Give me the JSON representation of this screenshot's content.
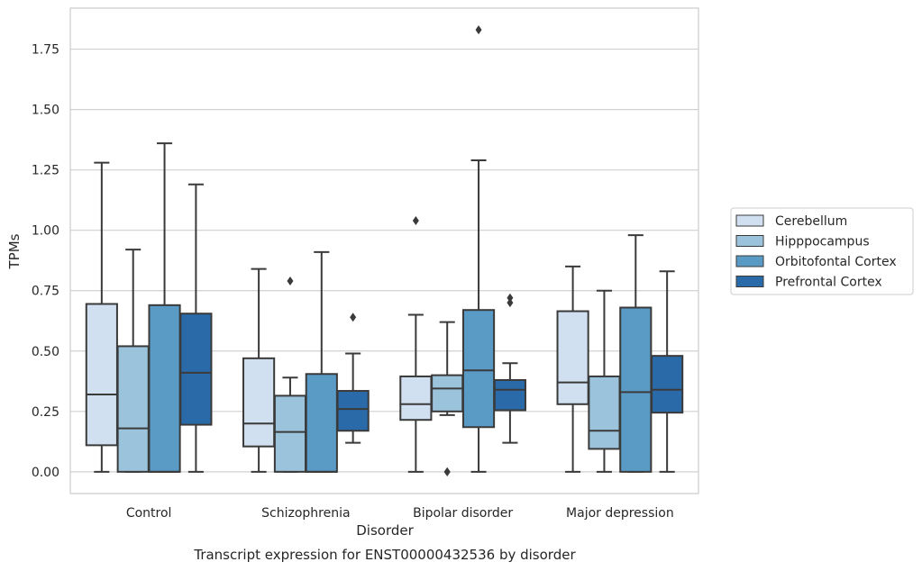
{
  "chart_data": {
    "type": "box",
    "caption": "Transcript expression for ENST00000432536 by disorder",
    "xlabel": "Disorder",
    "ylabel": "TPMs",
    "ylim": [
      -0.09,
      1.92
    ],
    "yticks": [
      "0.00",
      "0.25",
      "0.50",
      "0.75",
      "1.00",
      "1.25",
      "1.50",
      "1.75"
    ],
    "ytick_values": [
      0,
      0.25,
      0.5,
      0.75,
      1.0,
      1.25,
      1.5,
      1.75
    ],
    "grid": true,
    "legend_position": "right",
    "categories": [
      "Control",
      "Schizophrenia",
      "Bipolar disorder",
      "Major depression"
    ],
    "series": [
      {
        "name": "Cerebellum",
        "color": "#d1e0f0",
        "boxes": [
          {
            "whislo": 0.0,
            "q1": 0.11,
            "med": 0.32,
            "q3": 0.695,
            "whishi": 1.28,
            "fliers": []
          },
          {
            "whislo": 0.0,
            "q1": 0.105,
            "med": 0.2,
            "q3": 0.47,
            "whishi": 0.84,
            "fliers": []
          },
          {
            "whislo": 0.0,
            "q1": 0.215,
            "med": 0.28,
            "q3": 0.395,
            "whishi": 0.65,
            "fliers": [
              1.04
            ]
          },
          {
            "whislo": 0.0,
            "q1": 0.28,
            "med": 0.37,
            "q3": 0.665,
            "whishi": 0.85,
            "fliers": []
          }
        ]
      },
      {
        "name": "Hipppocampus",
        "color": "#9cc3dc",
        "boxes": [
          {
            "whislo": 0.0,
            "q1": 0.0,
            "med": 0.18,
            "q3": 0.52,
            "whishi": 0.92,
            "fliers": []
          },
          {
            "whislo": 0.0,
            "q1": 0.0,
            "med": 0.165,
            "q3": 0.315,
            "whishi": 0.39,
            "fliers": [
              0.79
            ]
          },
          {
            "whislo": 0.235,
            "q1": 0.25,
            "med": 0.345,
            "q3": 0.4,
            "whishi": 0.62,
            "fliers": [
              0.0,
              0.0
            ]
          },
          {
            "whislo": 0.0,
            "q1": 0.095,
            "med": 0.17,
            "q3": 0.395,
            "whishi": 0.75,
            "fliers": []
          }
        ]
      },
      {
        "name": "Orbitofontal Cortex",
        "color": "#5a9bc6",
        "boxes": [
          {
            "whislo": 0.0,
            "q1": 0.0,
            "med": 0.0,
            "q3": 0.69,
            "whishi": 1.36,
            "fliers": []
          },
          {
            "whislo": 0.0,
            "q1": 0.0,
            "med": 0.0,
            "q3": 0.405,
            "whishi": 0.91,
            "fliers": []
          },
          {
            "whislo": 0.0,
            "q1": 0.185,
            "med": 0.42,
            "q3": 0.67,
            "whishi": 1.29,
            "fliers": [
              1.83
            ]
          },
          {
            "whislo": 0.0,
            "q1": 0.0,
            "med": 0.33,
            "q3": 0.68,
            "whishi": 0.98,
            "fliers": []
          }
        ]
      },
      {
        "name": "Prefrontal Cortex",
        "color": "#2b6aa8",
        "boxes": [
          {
            "whislo": 0.0,
            "q1": 0.195,
            "med": 0.41,
            "q3": 0.655,
            "whishi": 1.19,
            "fliers": []
          },
          {
            "whislo": 0.12,
            "q1": 0.17,
            "med": 0.26,
            "q3": 0.335,
            "whishi": 0.49,
            "fliers": [
              0.64
            ]
          },
          {
            "whislo": 0.12,
            "q1": 0.255,
            "med": 0.34,
            "q3": 0.38,
            "whishi": 0.45,
            "fliers": [
              0.72,
              0.7
            ]
          },
          {
            "whislo": 0.0,
            "q1": 0.245,
            "med": 0.34,
            "q3": 0.48,
            "whishi": 0.83,
            "fliers": []
          }
        ]
      }
    ]
  }
}
